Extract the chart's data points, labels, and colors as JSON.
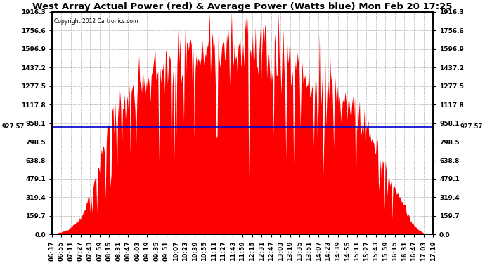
{
  "title": "West Array Actual Power (red) & Average Power (Watts blue) Mon Feb 20 17:25",
  "copyright": "Copyright 2012 Cartronics.com",
  "avg_power": 927.57,
  "y_max": 1916.3,
  "y_min": 0.0,
  "yticks": [
    0.0,
    159.7,
    319.4,
    479.1,
    638.8,
    798.5,
    958.1,
    1117.8,
    1277.5,
    1437.2,
    1596.9,
    1756.6,
    1916.3
  ],
  "fill_color": "#FF0000",
  "line_color": "#0000CC",
  "background_color": "#FFFFFF",
  "grid_color": "#AAAAAA",
  "x_labels": [
    "06:37",
    "06:55",
    "07:11",
    "07:27",
    "07:43",
    "07:59",
    "08:15",
    "08:31",
    "08:47",
    "09:03",
    "09:19",
    "09:35",
    "09:51",
    "10:07",
    "10:23",
    "10:39",
    "10:55",
    "11:11",
    "11:27",
    "11:43",
    "11:59",
    "12:15",
    "12:31",
    "12:47",
    "13:03",
    "13:19",
    "13:35",
    "13:51",
    "14:07",
    "14:23",
    "14:39",
    "14:55",
    "15:11",
    "15:27",
    "15:43",
    "15:59",
    "16:15",
    "16:31",
    "16:47",
    "17:03",
    "17:19"
  ],
  "title_fontsize": 9.5,
  "tick_fontsize": 6.5,
  "left_label": "927.57",
  "right_label": "927.57"
}
